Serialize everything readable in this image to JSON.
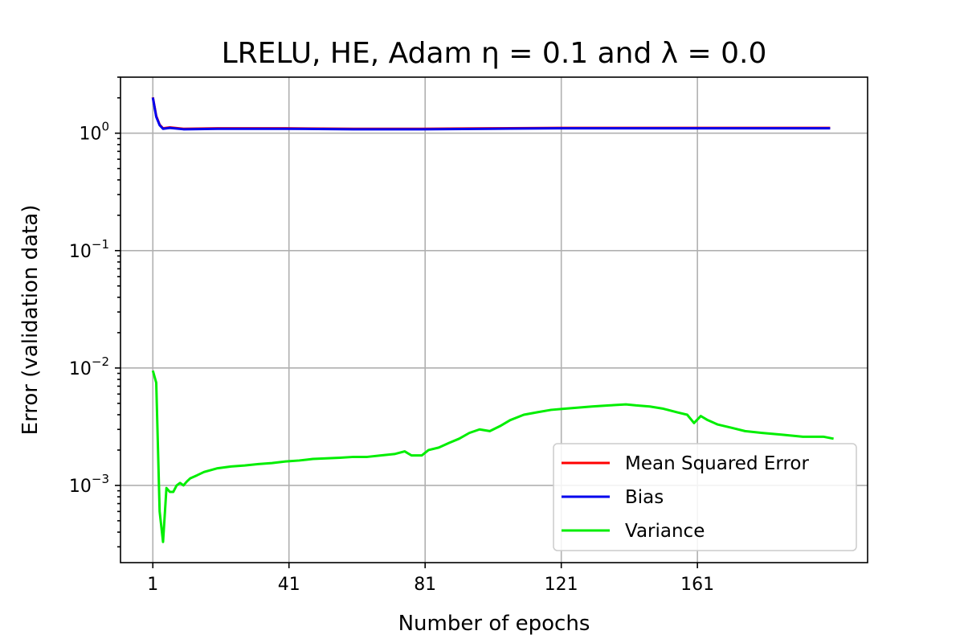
{
  "chart_data": {
    "type": "line",
    "title": "LRELU, HE, Adam η = 0.1 and λ = 0.0",
    "xlabel": "Number of epochs",
    "ylabel": "Error (validation data)",
    "x_ticks": [
      1,
      41,
      81,
      121,
      161
    ],
    "x_tick_labels": [
      "1",
      "41",
      "81",
      "121",
      "161"
    ],
    "xlim": [
      -8.5,
      211
    ],
    "y_scale": "log",
    "ylim": [
      0.00022,
      3.0
    ],
    "y_ticks": [
      {
        "value": 0.001,
        "base": "10",
        "exp": "−3"
      },
      {
        "value": 0.01,
        "base": "10",
        "exp": "−2"
      },
      {
        "value": 0.1,
        "base": "10",
        "exp": "−1"
      },
      {
        "value": 1,
        "base": "10",
        "exp": "0"
      }
    ],
    "grid": true,
    "legend_position": "lower-right",
    "series": [
      {
        "name": "Mean Squared Error",
        "color": "#ff0000",
        "points": [
          [
            1,
            2.02
          ],
          [
            2,
            1.4
          ],
          [
            3,
            1.18
          ],
          [
            4,
            1.1
          ],
          [
            6,
            1.12
          ],
          [
            10,
            1.09
          ],
          [
            20,
            1.1
          ],
          [
            40,
            1.1
          ],
          [
            60,
            1.09
          ],
          [
            80,
            1.09
          ],
          [
            100,
            1.1
          ],
          [
            120,
            1.11
          ],
          [
            140,
            1.11
          ],
          [
            160,
            1.11
          ],
          [
            180,
            1.11
          ],
          [
            200,
            1.11
          ]
        ]
      },
      {
        "name": "Bias",
        "color": "#0000ee",
        "points": [
          [
            1,
            2.01
          ],
          [
            2,
            1.38
          ],
          [
            3,
            1.17
          ],
          [
            4,
            1.09
          ],
          [
            6,
            1.11
          ],
          [
            10,
            1.08
          ],
          [
            20,
            1.09
          ],
          [
            40,
            1.09
          ],
          [
            60,
            1.08
          ],
          [
            80,
            1.08
          ],
          [
            100,
            1.09
          ],
          [
            120,
            1.1
          ],
          [
            140,
            1.1
          ],
          [
            160,
            1.1
          ],
          [
            180,
            1.1
          ],
          [
            200,
            1.1
          ]
        ]
      },
      {
        "name": "Variance",
        "color": "#00ee00",
        "points": [
          [
            1,
            0.0095
          ],
          [
            2,
            0.0075
          ],
          [
            3,
            0.0006
          ],
          [
            4,
            0.00033
          ],
          [
            5,
            0.00095
          ],
          [
            6,
            0.00088
          ],
          [
            7,
            0.00088
          ],
          [
            8,
            0.001
          ],
          [
            9,
            0.00105
          ],
          [
            10,
            0.001
          ],
          [
            11,
            0.00108
          ],
          [
            12,
            0.00115
          ],
          [
            14,
            0.00122
          ],
          [
            16,
            0.0013
          ],
          [
            18,
            0.00135
          ],
          [
            20,
            0.0014
          ],
          [
            24,
            0.00145
          ],
          [
            28,
            0.00148
          ],
          [
            32,
            0.00152
          ],
          [
            36,
            0.00155
          ],
          [
            40,
            0.0016
          ],
          [
            44,
            0.00163
          ],
          [
            48,
            0.00168
          ],
          [
            52,
            0.0017
          ],
          [
            56,
            0.00172
          ],
          [
            60,
            0.00175
          ],
          [
            64,
            0.00175
          ],
          [
            68,
            0.0018
          ],
          [
            72,
            0.00185
          ],
          [
            75,
            0.00195
          ],
          [
            77,
            0.0018
          ],
          [
            80,
            0.0018
          ],
          [
            82,
            0.002
          ],
          [
            85,
            0.0021
          ],
          [
            88,
            0.0023
          ],
          [
            91,
            0.0025
          ],
          [
            94,
            0.0028
          ],
          [
            97,
            0.003
          ],
          [
            100,
            0.0029
          ],
          [
            103,
            0.0032
          ],
          [
            106,
            0.0036
          ],
          [
            110,
            0.004
          ],
          [
            114,
            0.0042
          ],
          [
            118,
            0.0044
          ],
          [
            122,
            0.0045
          ],
          [
            126,
            0.0046
          ],
          [
            130,
            0.0047
          ],
          [
            135,
            0.0048
          ],
          [
            140,
            0.0049
          ],
          [
            143,
            0.0048
          ],
          [
            147,
            0.0047
          ],
          [
            151,
            0.0045
          ],
          [
            155,
            0.0042
          ],
          [
            158,
            0.004
          ],
          [
            160,
            0.0034
          ],
          [
            162,
            0.0039
          ],
          [
            164,
            0.0036
          ],
          [
            167,
            0.0033
          ],
          [
            171,
            0.0031
          ],
          [
            175,
            0.0029
          ],
          [
            180,
            0.0028
          ],
          [
            186,
            0.0027
          ],
          [
            192,
            0.0026
          ],
          [
            198,
            0.0026
          ],
          [
            201,
            0.0025
          ]
        ]
      }
    ]
  }
}
